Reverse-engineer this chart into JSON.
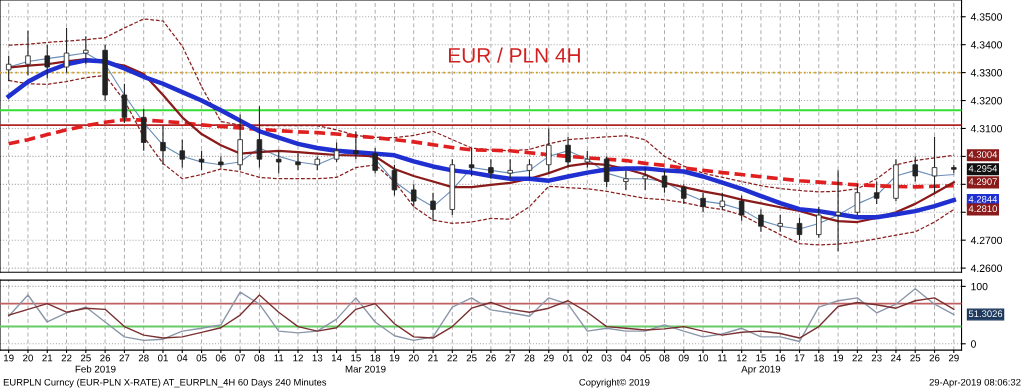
{
  "chart_data": [
    {
      "type": "candlestick",
      "title": "EUR / PLN 4H",
      "categories": [
        "19",
        "20",
        "21",
        "22",
        "25",
        "26",
        "27",
        "28",
        "01",
        "04",
        "05",
        "06",
        "07",
        "08",
        "11",
        "12",
        "13",
        "14",
        "15",
        "18",
        "19",
        "20",
        "21",
        "22",
        "25",
        "26",
        "27",
        "28",
        "29",
        "01",
        "02",
        "03",
        "04",
        "05",
        "08",
        "09",
        "10",
        "11",
        "12",
        "15",
        "16",
        "17",
        "18",
        "19",
        "22",
        "23",
        "24",
        "25",
        "26",
        "29"
      ],
      "ohlc": [
        [
          4.331,
          4.336,
          4.327,
          4.333
        ],
        [
          4.333,
          4.345,
          4.329,
          4.336
        ],
        [
          4.336,
          4.34,
          4.328,
          4.332
        ],
        [
          4.332,
          4.346,
          4.33,
          4.337
        ],
        [
          4.337,
          4.343,
          4.333,
          4.338
        ],
        [
          4.338,
          4.34,
          4.32,
          4.322
        ],
        [
          4.322,
          4.326,
          4.312,
          4.314
        ],
        [
          4.314,
          4.317,
          4.302,
          4.305
        ],
        [
          4.305,
          4.311,
          4.297,
          4.302
        ],
        [
          4.302,
          4.306,
          4.296,
          4.299
        ],
        [
          4.299,
          4.302,
          4.295,
          4.298
        ],
        [
          4.298,
          4.3,
          4.296,
          4.297
        ],
        [
          4.297,
          4.315,
          4.295,
          4.306
        ],
        [
          4.306,
          4.318,
          4.296,
          4.299
        ],
        [
          4.299,
          4.302,
          4.294,
          4.298
        ],
        [
          4.298,
          4.301,
          4.295,
          4.297
        ],
        [
          4.297,
          4.3,
          4.295,
          4.299
        ],
        [
          4.299,
          4.305,
          4.298,
          4.302
        ],
        [
          4.302,
          4.309,
          4.299,
          4.301
        ],
        [
          4.301,
          4.303,
          4.294,
          4.295
        ],
        [
          4.295,
          4.297,
          4.286,
          4.288
        ],
        [
          4.288,
          4.29,
          4.282,
          4.284
        ],
        [
          4.284,
          4.287,
          4.277,
          4.281
        ],
        [
          4.281,
          4.299,
          4.279,
          4.297
        ],
        [
          4.297,
          4.303,
          4.293,
          4.296
        ],
        [
          4.296,
          4.299,
          4.292,
          4.294
        ],
        [
          4.294,
          4.299,
          4.292,
          4.295
        ],
        [
          4.295,
          4.299,
          4.292,
          4.297
        ],
        [
          4.297,
          4.31,
          4.294,
          4.304
        ],
        [
          4.304,
          4.307,
          4.296,
          4.298
        ],
        [
          4.298,
          4.302,
          4.296,
          4.299
        ],
        [
          4.299,
          4.3,
          4.289,
          4.291
        ],
        [
          4.291,
          4.295,
          4.288,
          4.292
        ],
        [
          4.292,
          4.296,
          4.288,
          4.293
        ],
        [
          4.293,
          4.295,
          4.287,
          4.289
        ],
        [
          4.289,
          4.29,
          4.283,
          4.285
        ],
        [
          4.285,
          4.287,
          4.28,
          4.282
        ],
        [
          4.282,
          4.287,
          4.281,
          4.284
        ],
        [
          4.284,
          4.286,
          4.277,
          4.279
        ],
        [
          4.279,
          4.281,
          4.273,
          4.275
        ],
        [
          4.275,
          4.279,
          4.273,
          4.276
        ],
        [
          4.276,
          4.278,
          4.27,
          4.272
        ],
        [
          4.272,
          4.282,
          4.271,
          4.279
        ],
        [
          4.279,
          4.295,
          4.266,
          4.28
        ],
        [
          4.28,
          4.29,
          4.279,
          4.287
        ],
        [
          4.287,
          4.291,
          4.283,
          4.285
        ],
        [
          4.285,
          4.299,
          4.284,
          4.297
        ],
        [
          4.297,
          4.3,
          4.291,
          4.293
        ],
        [
          4.293,
          4.307,
          4.287,
          4.296
        ],
        [
          4.296,
          4.297,
          4.294,
          4.2954
        ]
      ],
      "series": [
        {
          "type": "line",
          "color": "#8b2020",
          "line_style": "dashed",
          "values": [
            4.3398,
            4.3402,
            4.3408,
            4.3413,
            4.3418,
            4.3425,
            4.346,
            4.3492,
            4.3485,
            4.3395,
            4.325,
            4.3125,
            4.3112,
            4.311,
            4.311,
            4.311,
            4.311,
            4.3095,
            4.3075,
            4.3068,
            4.3067,
            4.3075,
            4.309,
            4.306,
            4.303,
            4.3023,
            4.302,
            4.3025,
            4.3045,
            4.306,
            4.3065,
            4.307,
            4.3074,
            4.306,
            4.3,
            4.2965,
            4.294,
            4.2925,
            4.291,
            4.2895,
            4.2885,
            4.2878,
            4.2873,
            4.2875,
            4.2884,
            4.292,
            4.297,
            4.2985,
            4.2995,
            4.3004
          ]
        },
        {
          "type": "line",
          "color": "#8b2020",
          "line_style": "dashed",
          "values": [
            4.3272,
            4.326,
            4.3258,
            4.3268,
            4.3282,
            4.329,
            4.32,
            4.307,
            4.2975,
            4.292,
            4.2935,
            4.2955,
            4.2945,
            4.2925,
            4.292,
            4.292,
            4.292,
            4.2925,
            4.296,
            4.297,
            4.291,
            4.282,
            4.2772,
            4.276,
            4.2765,
            4.2778,
            4.2775,
            4.282,
            4.2893,
            4.2888,
            4.2884,
            4.2875,
            4.2862,
            4.285,
            4.2845,
            4.2835,
            4.282,
            4.281,
            4.279,
            4.2755,
            4.272,
            4.2688,
            4.2683,
            4.2686,
            4.2694,
            4.2705,
            4.2718,
            4.273,
            4.2765,
            4.281
          ]
        },
        {
          "type": "line",
          "color": "#6a8fb8",
          "line_style": "solid",
          "values": [
            4.332,
            4.334,
            4.335,
            4.336,
            4.337,
            4.333,
            4.322,
            4.312,
            4.304,
            4.3,
            4.298,
            4.297,
            4.298,
            4.303,
            4.3,
            4.298,
            4.297,
            4.3,
            4.302,
            4.299,
            4.291,
            4.286,
            4.282,
            4.288,
            4.296,
            4.295,
            4.294,
            4.295,
            4.3,
            4.302,
            4.299,
            4.294,
            4.292,
            4.292,
            4.291,
            4.287,
            4.284,
            4.283,
            4.281,
            4.277,
            4.275,
            4.274,
            4.276,
            4.279,
            4.283,
            4.286,
            4.293,
            4.295,
            4.293,
            4.2935
          ]
        },
        {
          "type": "line",
          "color": "#e02020",
          "line_style": "dashed",
          "values": [
            4.3045,
            4.306,
            4.3078,
            4.3095,
            4.311,
            4.3122,
            4.3132,
            4.313,
            4.3126,
            4.312,
            4.3113,
            4.3107,
            4.3102,
            4.3097,
            4.3092,
            4.3088,
            4.3085,
            4.308,
            4.3073,
            4.3067,
            4.306,
            4.3052,
            4.3042,
            4.3032,
            4.3023,
            4.3022,
            4.302,
            4.3013,
            4.3006,
            4.3,
            4.2995,
            4.299,
            4.2985,
            4.2975,
            4.2968,
            4.2958,
            4.295,
            4.2942,
            4.2935,
            4.2927,
            4.292,
            4.2913,
            4.2908,
            4.2903,
            4.2898,
            4.2895,
            4.2892,
            4.2891,
            4.2893,
            4.2895
          ]
        },
        {
          "type": "line",
          "color": "#8b1a1a",
          "line_style": "solid",
          "values": [
            4.3318,
            4.3325,
            4.333,
            4.334,
            4.3348,
            null,
            4.3325,
            4.3295,
            4.322,
            4.314,
            4.308,
            4.304,
            4.301,
            4.3015,
            4.302,
            4.3015,
            4.301,
            4.3005,
            4.3004,
            4.3,
            4.2955,
            4.293,
            4.291,
            4.289,
            4.289,
            4.2898,
            4.2905,
            4.292,
            4.294,
            4.2965,
            4.2975,
            4.297,
            4.2955,
            4.2935,
            4.2905,
            4.289,
            4.2875,
            4.2862,
            4.2845,
            4.2832,
            4.2818,
            4.2805,
            4.2785,
            4.2768,
            4.2765,
            4.278,
            4.28,
            4.283,
            4.2868,
            4.2907
          ]
        },
        {
          "type": "line",
          "color": "#1f2fd0",
          "line_style": "solid",
          "values": [
            4.3215,
            4.3267,
            4.3304,
            4.333,
            4.3344,
            4.334,
            4.3315,
            4.3285,
            4.326,
            4.323,
            4.32,
            4.3165,
            4.3128,
            4.309,
            4.3067,
            4.3045,
            4.303,
            4.302,
            4.3015,
            4.301,
            4.3004,
            4.2982,
            4.2964,
            4.295,
            4.2942,
            4.293,
            4.292,
            4.292,
            4.2913,
            4.2928,
            4.2942,
            4.2953,
            4.2957,
            4.2957,
            4.295,
            4.2946,
            4.2928,
            4.2906,
            4.2884,
            4.2858,
            4.2833,
            4.2811,
            4.2804,
            4.2793,
            4.2782,
            4.2782,
            4.2793,
            4.2804,
            4.2822,
            4.2844
          ]
        }
      ],
      "ref_lines": [
        {
          "axis": "y",
          "value": 4.33,
          "color": "#d4a017",
          "line_style": "dotted"
        },
        {
          "axis": "y",
          "value": 4.3165,
          "color": "#33dd33",
          "line_style": "solid"
        },
        {
          "axis": "y",
          "value": 4.3112,
          "color": "#b22222",
          "line_style": "solid"
        }
      ],
      "annotations": [
        "4.3004",
        "4.2954",
        "4.2907",
        "4.2844",
        "4.2810"
      ],
      "ylim": [
        4.2585,
        4.356
      ],
      "yticks": [
        {
          "value": 4.26,
          "label": "4.2600"
        },
        {
          "value": 4.27,
          "label": "4.2700"
        },
        {
          "value": 4.28,
          "label": null
        },
        {
          "value": 4.29,
          "label": null
        },
        {
          "value": 4.3,
          "label": null
        },
        {
          "value": 4.31,
          "label": "4.3100"
        },
        {
          "value": 4.32,
          "label": "4.3200"
        },
        {
          "value": 4.33,
          "label": "4.3300"
        },
        {
          "value": 4.34,
          "label": "4.3400"
        },
        {
          "value": 4.35,
          "label": "4.3500"
        }
      ],
      "tick_labels": "y",
      "grid": true
    },
    {
      "type": "line",
      "categories": [
        "19",
        "20",
        "21",
        "22",
        "25",
        "26",
        "27",
        "28",
        "01",
        "04",
        "05",
        "06",
        "07",
        "08",
        "11",
        "12",
        "13",
        "14",
        "15",
        "18",
        "19",
        "20",
        "21",
        "22",
        "25",
        "26",
        "27",
        "28",
        "29",
        "01",
        "02",
        "03",
        "04",
        "05",
        "08",
        "09",
        "10",
        "11",
        "12",
        "15",
        "16",
        "17",
        "18",
        "19",
        "22",
        "23",
        "24",
        "25",
        "26",
        "29"
      ],
      "series": [
        {
          "color": "#8a96a8",
          "values": [
            48,
            85,
            38,
            54,
            64,
            38,
            12,
            6,
            8,
            22,
            27,
            33,
            90,
            69,
            22,
            19,
            22,
            43,
            80,
            38,
            14,
            6,
            12,
            64,
            80,
            59,
            54,
            48,
            80,
            69,
            22,
            27,
            22,
            22,
            33,
            22,
            12,
            17,
            27,
            12,
            12,
            4,
            64,
            75,
            80,
            54,
            69,
            96,
            69,
            51
          ]
        },
        {
          "color": "#7a3030",
          "values": [
            50,
            60,
            70,
            55,
            62,
            60,
            30,
            15,
            10,
            12,
            20,
            28,
            50,
            85,
            55,
            30,
            22,
            28,
            60,
            70,
            35,
            12,
            10,
            30,
            62,
            72,
            60,
            55,
            62,
            75,
            55,
            30,
            27,
            24,
            26,
            30,
            22,
            15,
            20,
            22,
            18,
            10,
            30,
            65,
            72,
            68,
            62,
            75,
            80,
            60
          ]
        }
      ],
      "ref_lines": [
        {
          "axis": "y",
          "value": 70,
          "color": "#c06060",
          "line_style": "solid"
        },
        {
          "axis": "y",
          "value": 30,
          "color": "#66cc66",
          "line_style": "solid"
        }
      ],
      "annotations": [
        "51.3026",
        "Feb 2019",
        "Mar 2019",
        "Apr 2019",
        "EURPLN Curncy (EUR-PLN X-RATE) AT_EURPLN_4H 60 Days 240 Minutes",
        "Copyright© 2019",
        "29-Apr-2019 08:06:32"
      ],
      "ylim": [
        -11,
        111
      ],
      "yticks": [
        0,
        100
      ],
      "grid": true
    }
  ]
}
